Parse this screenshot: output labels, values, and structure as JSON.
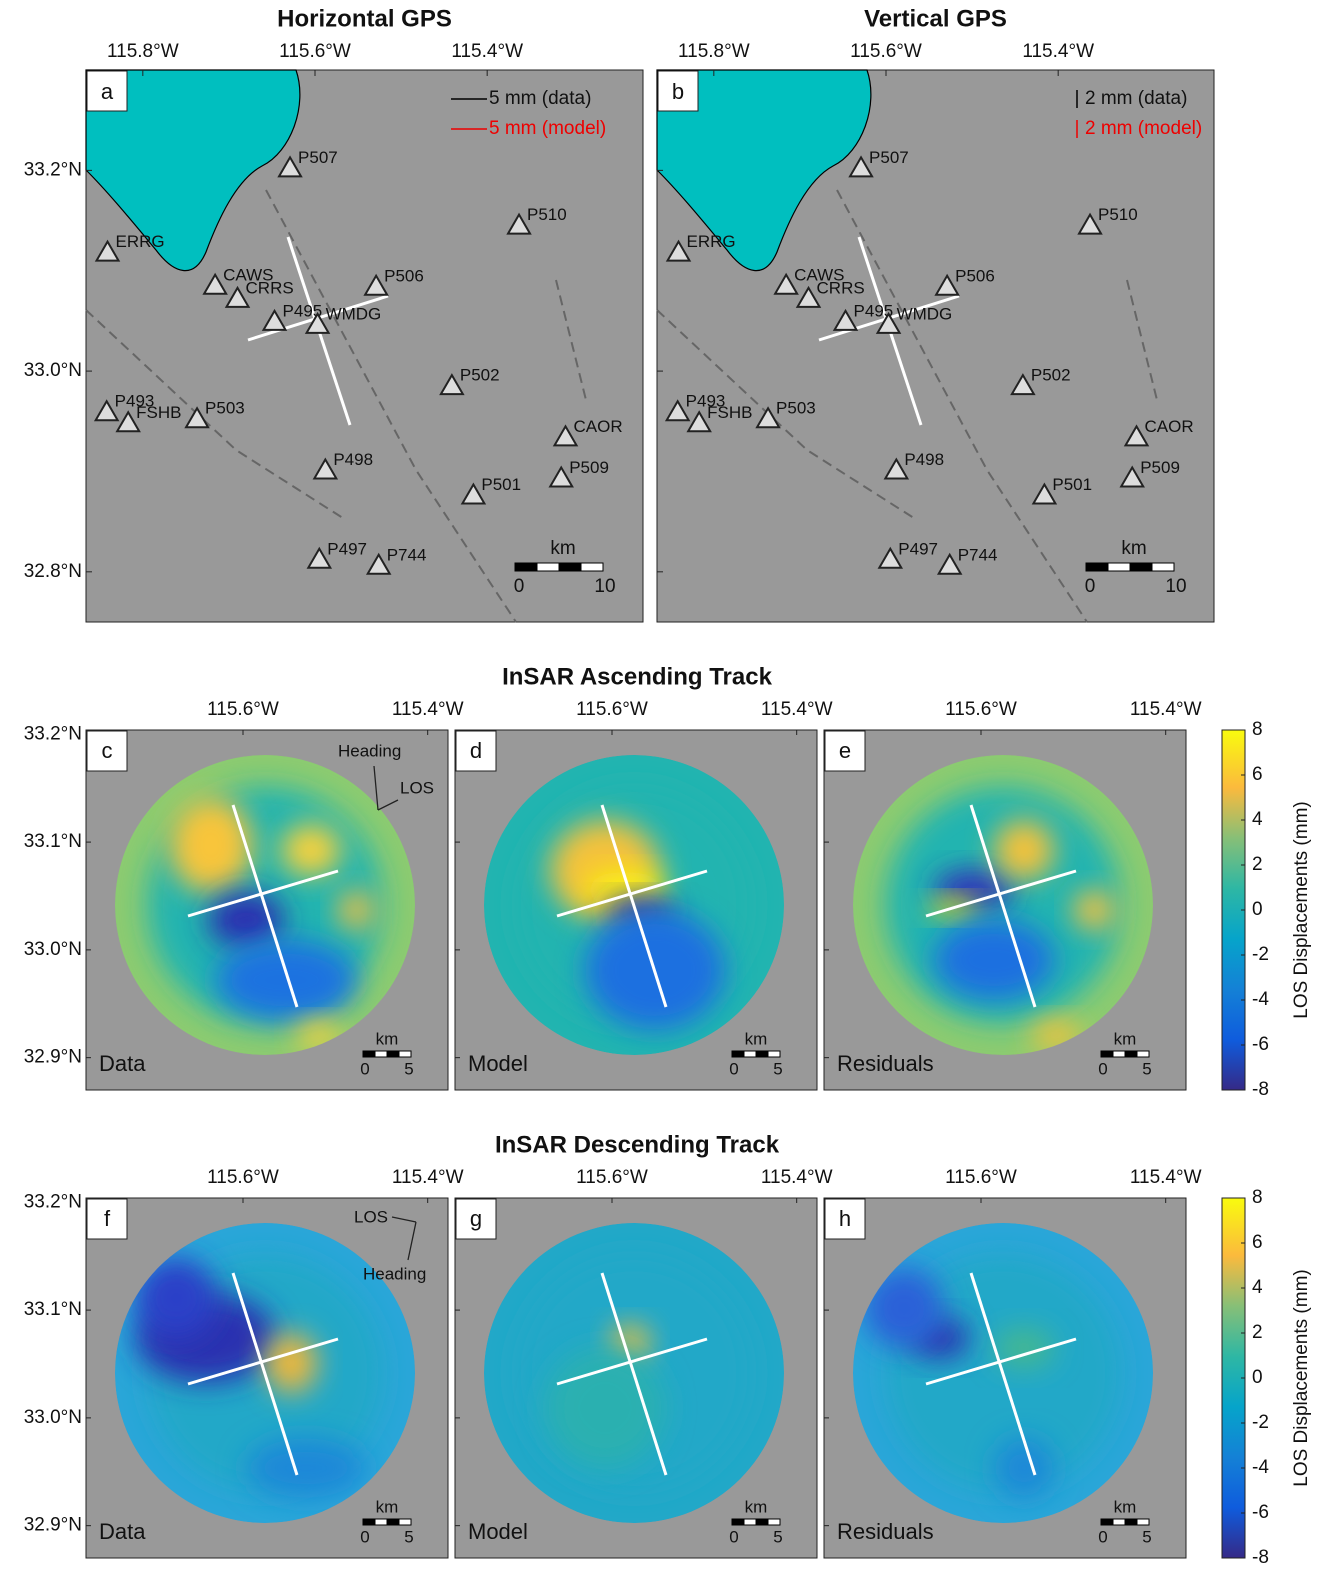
{
  "gps": {
    "xlim": [
      -115.866,
      -115.219
    ],
    "ylim": [
      32.75,
      33.3
    ],
    "xticks": [
      {
        "value": -115.8,
        "label": "115.8°W"
      },
      {
        "value": -115.6,
        "label": "115.6°W"
      },
      {
        "value": -115.4,
        "label": "115.4°W"
      }
    ],
    "yticks": [
      {
        "value": 33.2,
        "label": "33.2°N"
      },
      {
        "value": 33.0,
        "label": "33.0°N"
      },
      {
        "value": 32.8,
        "label": "32.8°N"
      }
    ],
    "scale_label": "km",
    "scale_ticks": [
      "0",
      "10"
    ],
    "panels": [
      {
        "title": "Horizontal GPS",
        "letter": "a",
        "legend": [
          "5 mm (data)",
          "5 mm (model)"
        ]
      },
      {
        "title": "Vertical GPS",
        "letter": "b",
        "legend": [
          "2 mm (data)",
          "2 mm (model)"
        ]
      }
    ],
    "stations": [
      {
        "name": "P507",
        "lon": -115.629,
        "lat": 33.202
      },
      {
        "name": "P510",
        "lon": -115.363,
        "lat": 33.145
      },
      {
        "name": "ERRG",
        "lon": -115.841,
        "lat": 33.118
      },
      {
        "name": "CAWS",
        "lon": -115.716,
        "lat": 33.085
      },
      {
        "name": "CRRS",
        "lon": -115.69,
        "lat": 33.072
      },
      {
        "name": "P506",
        "lon": -115.529,
        "lat": 33.084
      },
      {
        "name": "P495",
        "lon": -115.647,
        "lat": 33.049
      },
      {
        "name": "WMDG",
        "lon": -115.597,
        "lat": 33.046
      },
      {
        "name": "P502",
        "lon": -115.441,
        "lat": 32.985
      },
      {
        "name": "P493",
        "lon": -115.842,
        "lat": 32.959
      },
      {
        "name": "FSHB",
        "lon": -115.817,
        "lat": 32.948
      },
      {
        "name": "P503",
        "lon": -115.737,
        "lat": 32.952
      },
      {
        "name": "CAOR",
        "lon": -115.309,
        "lat": 32.934
      },
      {
        "name": "P498",
        "lon": -115.588,
        "lat": 32.901
      },
      {
        "name": "P509",
        "lon": -115.314,
        "lat": 32.893
      },
      {
        "name": "P501",
        "lon": -115.416,
        "lat": 32.876
      },
      {
        "name": "P497",
        "lon": -115.595,
        "lat": 32.812
      },
      {
        "name": "P744",
        "lon": -115.526,
        "lat": 32.806
      }
    ]
  },
  "insar": {
    "xlim": [
      -115.77,
      -115.378
    ],
    "ylim": [
      32.87,
      33.204
    ],
    "xticks": [
      {
        "value": -115.6,
        "label": "115.6°W"
      },
      {
        "value": -115.4,
        "label": "115.4°W"
      }
    ],
    "yticks": [
      {
        "value": 33.2,
        "label": "33.2°N"
      },
      {
        "value": 33.1,
        "label": "33.1°N"
      },
      {
        "value": 33.0,
        "label": "33.0°N"
      },
      {
        "value": 32.9,
        "label": "32.9°N"
      }
    ],
    "scale_label": "km",
    "scale_ticks": [
      "0",
      "5"
    ],
    "tracks": [
      {
        "title": "InSAR Ascending Track",
        "heading": "Heading",
        "los": "LOS",
        "panels": [
          {
            "letter": "c",
            "label": "Data"
          },
          {
            "letter": "d",
            "label": "Model"
          },
          {
            "letter": "e",
            "label": "Residuals"
          }
        ]
      },
      {
        "title": "InSAR Descending Track",
        "heading": "Heading",
        "los": "LOS",
        "panels": [
          {
            "letter": "f",
            "label": "Data"
          },
          {
            "letter": "g",
            "label": "Model"
          },
          {
            "letter": "h",
            "label": "Residuals"
          }
        ]
      }
    ],
    "colorbar": {
      "label": "LOS Displacements (mm)",
      "lim": [
        -8,
        8
      ],
      "ticks": [
        8,
        6,
        4,
        2,
        0,
        -2,
        -4,
        -6,
        -8
      ]
    }
  }
}
